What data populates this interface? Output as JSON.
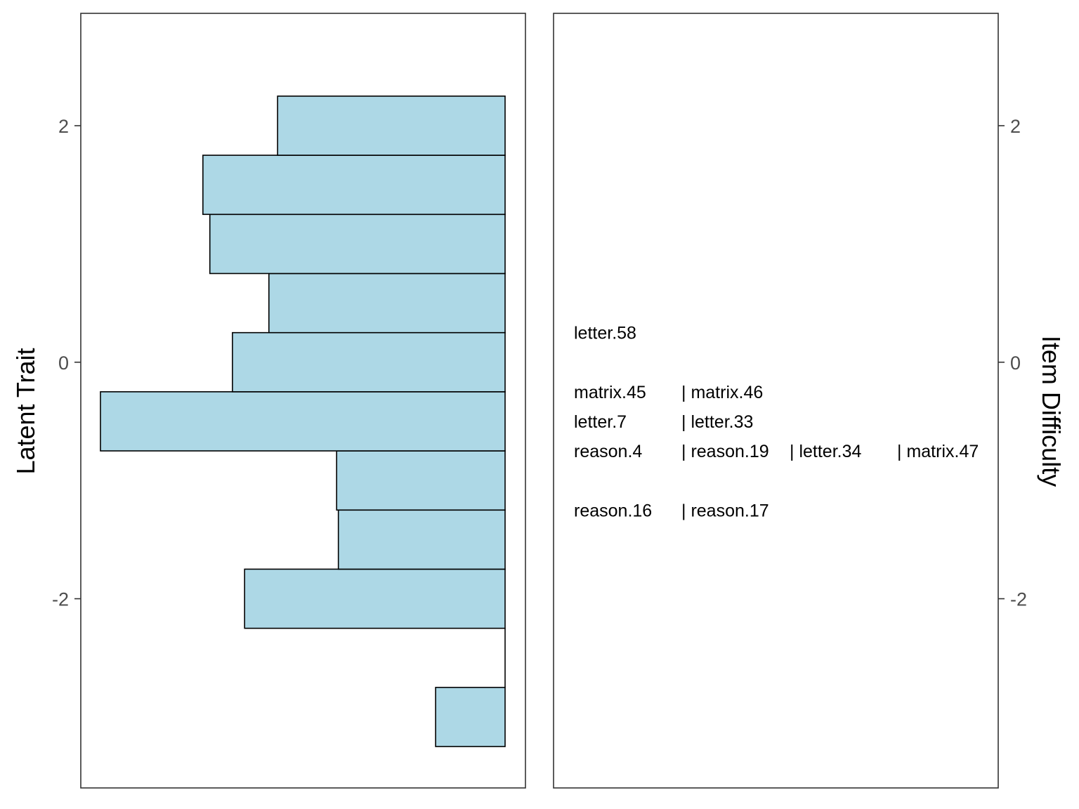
{
  "chart_data": {
    "type": "bar",
    "orientation": "horizontal",
    "layout": "wright-map",
    "ylim": [
      -3.6,
      2.95
    ],
    "y_ticks": [
      -2,
      0,
      2
    ],
    "colors": {
      "bar_fill": "#add8e6",
      "bar_stroke": "#000000",
      "panel_border": "#333333",
      "tick_text": "#4d4d4d"
    },
    "left_panel": {
      "ylabel": "Latent Trait",
      "bins": [
        {
          "y_low": -3.25,
          "y_high": -2.75,
          "count": 2
        },
        {
          "y_low": -2.75,
          "y_high": -2.25,
          "count": 0
        },
        {
          "y_low": -2.25,
          "y_high": -1.75,
          "count": 7.5
        },
        {
          "y_low": -1.75,
          "y_high": -1.25,
          "count": 4.8
        },
        {
          "y_low": -1.25,
          "y_high": -0.75,
          "count": 4.85
        },
        {
          "y_low": -0.75,
          "y_high": -0.25,
          "count": 11.65
        },
        {
          "y_low": -0.25,
          "y_high": 0.25,
          "count": 7.85
        },
        {
          "y_low": 0.25,
          "y_high": 0.75,
          "count": 6.8
        },
        {
          "y_low": 0.75,
          "y_high": 1.25,
          "count": 8.5
        },
        {
          "y_low": 1.25,
          "y_high": 1.75,
          "count": 8.7
        },
        {
          "y_low": 1.75,
          "y_high": 2.25,
          "count": 6.55
        }
      ],
      "xlim": [
        0,
        12.2
      ]
    },
    "right_panel": {
      "ylabel": "Item Difficulty",
      "rows": [
        {
          "y": 0.25,
          "items": [
            "letter.58"
          ]
        },
        {
          "y": -0.25,
          "items": [
            "matrix.45",
            "| matrix.46"
          ]
        },
        {
          "y": -0.5,
          "items": [
            "letter.7",
            "| letter.33"
          ]
        },
        {
          "y": -0.75,
          "items": [
            "reason.4",
            "| reason.19",
            "| letter.34",
            "| matrix.47"
          ]
        },
        {
          "y": -1.25,
          "items": [
            "reason.16",
            "| reason.17"
          ]
        }
      ]
    }
  }
}
